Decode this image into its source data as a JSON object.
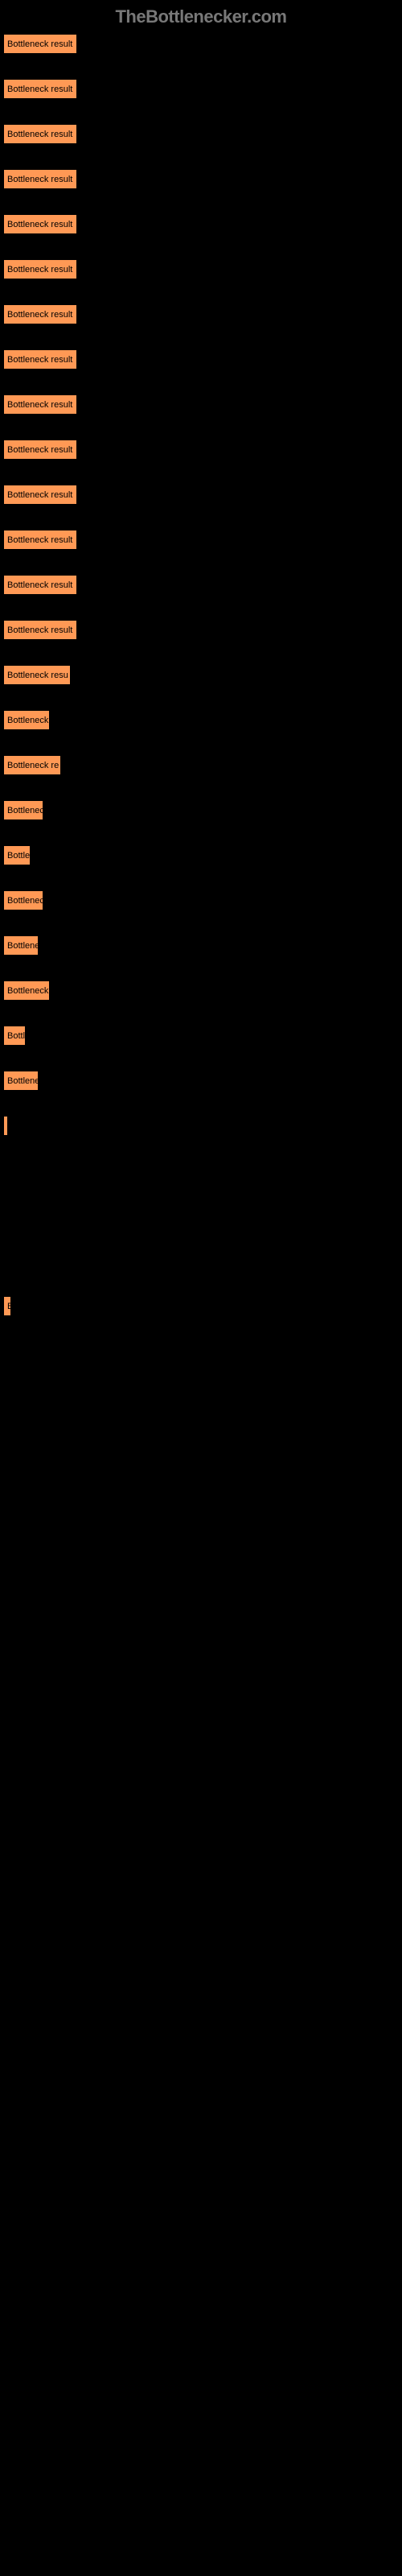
{
  "header": {
    "text": "TheBottlenecker.com"
  },
  "chart": {
    "type": "bar",
    "background_color": "#000000",
    "bar_color": "#ff9955",
    "bar_border_color": "#000000",
    "label_color": "#000000",
    "label_fontsize": 11,
    "header_color": "#787878",
    "header_fontsize": 22,
    "bars": [
      {
        "label": "Bottleneck result",
        "width": 92
      },
      {
        "label": "Bottleneck result",
        "width": 92
      },
      {
        "label": "Bottleneck result",
        "width": 92
      },
      {
        "label": "Bottleneck result",
        "width": 92
      },
      {
        "label": "Bottleneck result",
        "width": 92
      },
      {
        "label": "Bottleneck result",
        "width": 92
      },
      {
        "label": "Bottleneck result",
        "width": 92
      },
      {
        "label": "Bottleneck result",
        "width": 92
      },
      {
        "label": "Bottleneck result",
        "width": 92
      },
      {
        "label": "Bottleneck result",
        "width": 92
      },
      {
        "label": "Bottleneck result",
        "width": 92
      },
      {
        "label": "Bottleneck result",
        "width": 92
      },
      {
        "label": "Bottleneck result",
        "width": 92
      },
      {
        "label": "Bottleneck result",
        "width": 92
      },
      {
        "label": "Bottleneck resu",
        "width": 84
      },
      {
        "label": "Bottleneck",
        "width": 58
      },
      {
        "label": "Bottleneck re",
        "width": 72
      },
      {
        "label": "Bottlenec",
        "width": 50
      },
      {
        "label": "Bottle",
        "width": 34
      },
      {
        "label": "Bottlenec",
        "width": 50
      },
      {
        "label": "Bottlene",
        "width": 44
      },
      {
        "label": "Bottleneck",
        "width": 58
      },
      {
        "label": "Bottl",
        "width": 28
      },
      {
        "label": "Bottlene",
        "width": 44
      },
      {
        "label": "",
        "width": 3
      },
      {
        "label": "",
        "width": 0
      },
      {
        "label": "",
        "width": 0
      },
      {
        "label": "",
        "width": 0
      },
      {
        "label": "B",
        "width": 10
      },
      {
        "label": "",
        "width": 0
      },
      {
        "label": "",
        "width": 0
      },
      {
        "label": "",
        "width": 0
      },
      {
        "label": "",
        "width": 0
      },
      {
        "label": "",
        "width": 0
      },
      {
        "label": "",
        "width": 0
      },
      {
        "label": "",
        "width": 0
      },
      {
        "label": "",
        "width": 0
      },
      {
        "label": "",
        "width": 0
      },
      {
        "label": "",
        "width": 0
      },
      {
        "label": "",
        "width": 0
      },
      {
        "label": "",
        "width": 0
      },
      {
        "label": "",
        "width": 0
      },
      {
        "label": "",
        "width": 0
      },
      {
        "label": "",
        "width": 0
      },
      {
        "label": "",
        "width": 0
      },
      {
        "label": "",
        "width": 0
      },
      {
        "label": "",
        "width": 0
      },
      {
        "label": "",
        "width": 0
      },
      {
        "label": "",
        "width": 0
      },
      {
        "label": "",
        "width": 0
      },
      {
        "label": "",
        "width": 0
      },
      {
        "label": "",
        "width": 0
      },
      {
        "label": "",
        "width": 0
      },
      {
        "label": "",
        "width": 0
      },
      {
        "label": "",
        "width": 0
      },
      {
        "label": "",
        "width": 0
      }
    ]
  }
}
